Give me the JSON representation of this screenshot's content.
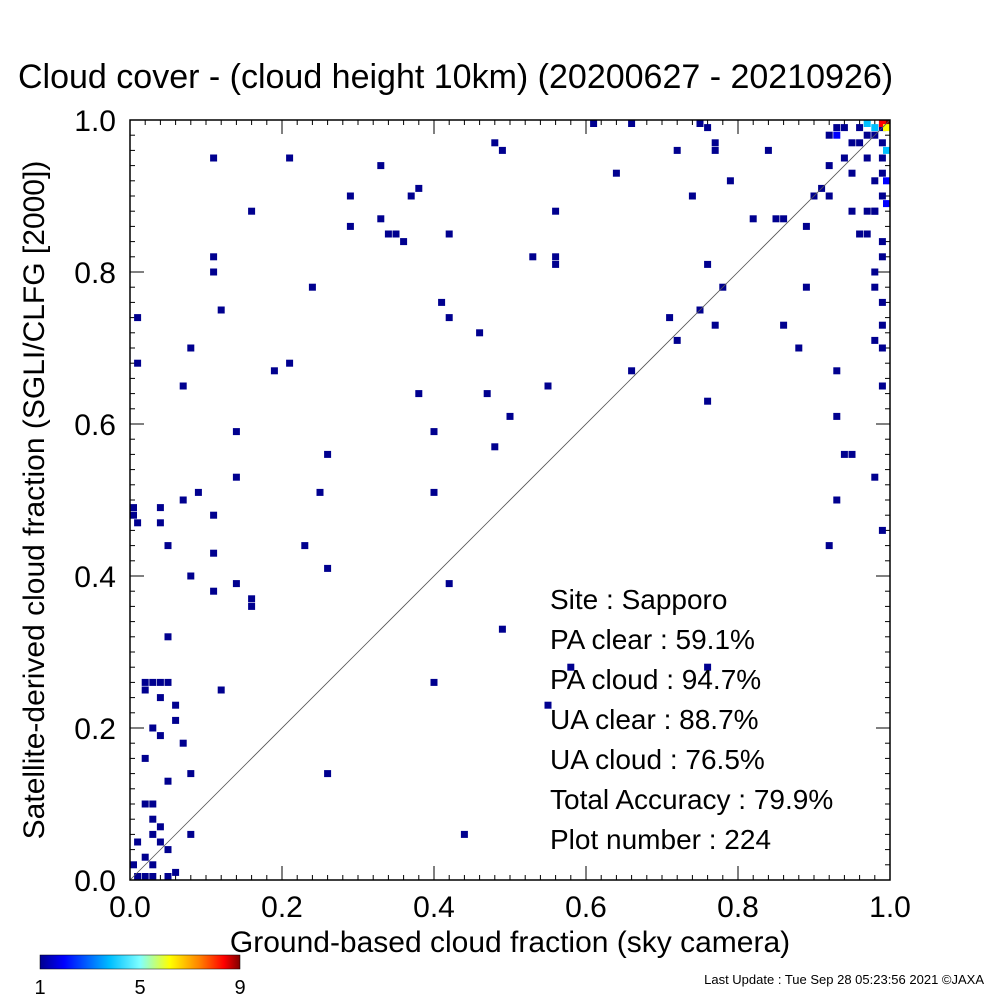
{
  "chart_data": {
    "type": "heatmap",
    "title": "Cloud cover - (cloud height 10km)  (20200627 - 20210926)",
    "xlabel": "Ground-based cloud fraction (sky camera)",
    "ylabel": "Satellite-derived cloud fraction (SGLI/CLFG [2000])",
    "xlim": [
      0,
      1
    ],
    "ylim": [
      0,
      1
    ],
    "xticks": [
      "0.0",
      "0.2",
      "0.4",
      "0.6",
      "0.8",
      "1.0"
    ],
    "yticks": [
      "0.0",
      "0.2",
      "0.4",
      "0.6",
      "0.8",
      "1.0"
    ],
    "diagonal_line": true,
    "points": [
      [
        0.11,
        0.95
      ],
      [
        0.21,
        0.95
      ],
      [
        0.33,
        0.94
      ],
      [
        0.48,
        0.97
      ],
      [
        0.49,
        0.96
      ],
      [
        0.61,
        1.0
      ],
      [
        0.66,
        1.0
      ],
      [
        0.75,
        1.0
      ],
      [
        0.76,
        0.99
      ],
      [
        0.77,
        0.97
      ],
      [
        0.77,
        0.96
      ],
      [
        0.84,
        0.96
      ],
      [
        0.72,
        0.96
      ],
      [
        0.64,
        0.93
      ],
      [
        0.79,
        0.92
      ],
      [
        0.29,
        0.9
      ],
      [
        0.37,
        0.9
      ],
      [
        0.38,
        0.91
      ],
      [
        0.74,
        0.9
      ],
      [
        0.16,
        0.88
      ],
      [
        0.56,
        0.88
      ],
      [
        0.33,
        0.87
      ],
      [
        0.29,
        0.86
      ],
      [
        0.35,
        0.85
      ],
      [
        0.34,
        0.85
      ],
      [
        0.36,
        0.84
      ],
      [
        0.42,
        0.85
      ],
      [
        0.53,
        0.82
      ],
      [
        0.56,
        0.82
      ],
      [
        0.56,
        0.81
      ],
      [
        0.11,
        0.82
      ],
      [
        0.11,
        0.8
      ],
      [
        0.24,
        0.78
      ],
      [
        0.12,
        0.75
      ],
      [
        0.01,
        0.74
      ],
      [
        0.41,
        0.76
      ],
      [
        0.42,
        0.74
      ],
      [
        0.46,
        0.72
      ],
      [
        0.01,
        0.68
      ],
      [
        0.08,
        0.7
      ],
      [
        0.07,
        0.65
      ],
      [
        0.19,
        0.67
      ],
      [
        0.21,
        0.68
      ],
      [
        0.38,
        0.64
      ],
      [
        0.47,
        0.64
      ],
      [
        0.55,
        0.65
      ],
      [
        0.66,
        0.67
      ],
      [
        0.76,
        0.81
      ],
      [
        0.78,
        0.78
      ],
      [
        0.71,
        0.74
      ],
      [
        0.72,
        0.71
      ],
      [
        0.75,
        0.75
      ],
      [
        0.77,
        0.73
      ],
      [
        0.76,
        0.63
      ],
      [
        0.82,
        0.87
      ],
      [
        0.85,
        0.87
      ],
      [
        0.86,
        0.87
      ],
      [
        0.89,
        0.86
      ],
      [
        0.9,
        0.9
      ],
      [
        0.91,
        0.91
      ],
      [
        0.92,
        0.94
      ],
      [
        0.92,
        0.9
      ],
      [
        0.95,
        0.88
      ],
      [
        0.96,
        0.85
      ],
      [
        0.86,
        0.73
      ],
      [
        0.88,
        0.7
      ],
      [
        0.89,
        0.78
      ],
      [
        0.93,
        0.67
      ],
      [
        0.93,
        0.61
      ],
      [
        0.94,
        0.56
      ],
      [
        0.95,
        0.56
      ],
      [
        0.93,
        0.5
      ],
      [
        0.92,
        0.44
      ],
      [
        0.98,
        0.53
      ],
      [
        0.99,
        0.46
      ],
      [
        0.14,
        0.59
      ],
      [
        0.14,
        0.53
      ],
      [
        0.09,
        0.51
      ],
      [
        0.07,
        0.5
      ],
      [
        0.11,
        0.48
      ],
      [
        0.04,
        0.49
      ],
      [
        0.0,
        0.49
      ],
      [
        0.0,
        0.48
      ],
      [
        0.01,
        0.47
      ],
      [
        0.04,
        0.47
      ],
      [
        0.05,
        0.44
      ],
      [
        0.11,
        0.43
      ],
      [
        0.26,
        0.56
      ],
      [
        0.25,
        0.51
      ],
      [
        0.23,
        0.44
      ],
      [
        0.26,
        0.41
      ],
      [
        0.4,
        0.59
      ],
      [
        0.4,
        0.51
      ],
      [
        0.48,
        0.57
      ],
      [
        0.5,
        0.61
      ],
      [
        0.08,
        0.4
      ],
      [
        0.11,
        0.38
      ],
      [
        0.14,
        0.39
      ],
      [
        0.16,
        0.37
      ],
      [
        0.16,
        0.36
      ],
      [
        0.05,
        0.32
      ],
      [
        0.42,
        0.39
      ],
      [
        0.49,
        0.33
      ],
      [
        0.58,
        0.28
      ],
      [
        0.76,
        0.28
      ],
      [
        0.55,
        0.23
      ],
      [
        0.02,
        0.26
      ],
      [
        0.03,
        0.26
      ],
      [
        0.04,
        0.26
      ],
      [
        0.02,
        0.25
      ],
      [
        0.04,
        0.24
      ],
      [
        0.05,
        0.26
      ],
      [
        0.06,
        0.23
      ],
      [
        0.06,
        0.21
      ],
      [
        0.03,
        0.2
      ],
      [
        0.04,
        0.19
      ],
      [
        0.07,
        0.18
      ],
      [
        0.02,
        0.16
      ],
      [
        0.12,
        0.25
      ],
      [
        0.4,
        0.26
      ],
      [
        0.05,
        0.13
      ],
      [
        0.08,
        0.14
      ],
      [
        0.26,
        0.14
      ],
      [
        0.02,
        0.1
      ],
      [
        0.03,
        0.1
      ],
      [
        0.03,
        0.08
      ],
      [
        0.04,
        0.07
      ],
      [
        0.03,
        0.06
      ],
      [
        0.01,
        0.05
      ],
      [
        0.04,
        0.05
      ],
      [
        0.08,
        0.06
      ],
      [
        0.44,
        0.06
      ],
      [
        0.02,
        0.03
      ],
      [
        0.03,
        0.02
      ],
      [
        0.05,
        0.04
      ],
      [
        0.0,
        0.02
      ],
      [
        0.01,
        0.0
      ],
      [
        0.02,
        0.0
      ],
      [
        0.03,
        0.0
      ],
      [
        0.05,
        0.0
      ],
      [
        0.06,
        0.01
      ],
      [
        0.99,
        0.99
      ],
      [
        0.98,
        0.98
      ],
      [
        0.97,
        0.98
      ],
      [
        0.96,
        0.99
      ],
      [
        0.99,
        0.97
      ],
      [
        0.99,
        0.95
      ],
      [
        0.99,
        0.93
      ],
      [
        0.98,
        0.92
      ],
      [
        0.99,
        0.9
      ],
      [
        0.98,
        0.88
      ],
      [
        0.97,
        0.88
      ],
      [
        0.96,
        0.97
      ],
      [
        0.95,
        0.97
      ],
      [
        0.94,
        0.99
      ],
      [
        0.93,
        0.99
      ],
      [
        0.92,
        0.98
      ],
      [
        0.97,
        0.95
      ],
      [
        0.99,
        0.84
      ],
      [
        0.99,
        0.82
      ],
      [
        0.98,
        0.8
      ],
      [
        0.98,
        0.78
      ],
      [
        0.99,
        0.76
      ],
      [
        0.99,
        0.73
      ],
      [
        0.98,
        0.71
      ],
      [
        0.99,
        0.7
      ],
      [
        0.99,
        0.65
      ],
      [
        0.97,
        0.85
      ],
      [
        0.98,
        0.88
      ],
      [
        0.94,
        0.95
      ],
      [
        0.95,
        0.93
      ]
    ],
    "hot_points": [
      {
        "x": 1.0,
        "y": 1.0,
        "count": 9
      },
      {
        "x": 0.99,
        "y": 1.0,
        "count": 8
      },
      {
        "x": 1.0,
        "y": 0.99,
        "count": 6
      },
      {
        "x": 0.98,
        "y": 0.99,
        "count": 3
      },
      {
        "x": 0.97,
        "y": 1.0,
        "count": 3
      },
      {
        "x": 1.0,
        "y": 0.96,
        "count": 3
      },
      {
        "x": 1.0,
        "y": 0.92,
        "count": 2
      },
      {
        "x": 1.0,
        "y": 0.89,
        "count": 2
      },
      {
        "x": 0.93,
        "y": 0.98,
        "count": 2
      }
    ],
    "colorbar": {
      "min": 1,
      "max": 9,
      "tick_labels": [
        "1",
        "5",
        "9"
      ],
      "colors": [
        "#00008f",
        "#0000ff",
        "#00bfff",
        "#7fffff",
        "#ffff00",
        "#ff7f00",
        "#ff0000",
        "#7f0000"
      ]
    },
    "stats": {
      "site": "Site : Sapporo",
      "pa_clear": "PA clear :  59.1%",
      "pa_cloud": "PA cloud :  94.7%",
      "ua_clear": "UA clear :  88.7%",
      "ua_cloud": "UA cloud :  76.5%",
      "total_accuracy": "Total Accuracy :  79.9%",
      "plot_number": "Plot number :       224"
    },
    "footer": "Last Update : Tue Sep 28 05:23:56 2021  ©JAXA",
    "base_color": "#00008f"
  }
}
